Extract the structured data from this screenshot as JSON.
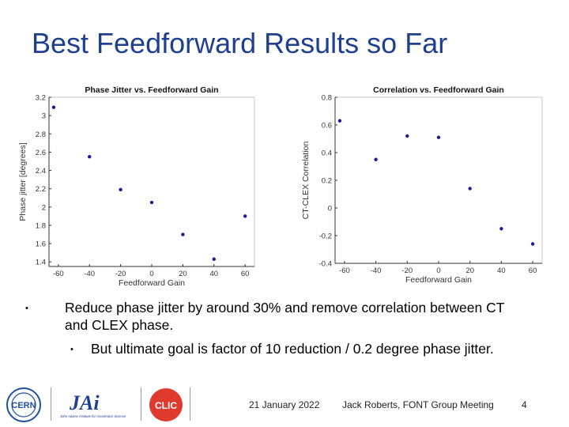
{
  "slide": {
    "title": "Best Feedforward Results so Far",
    "bullets": [
      {
        "text": "Reduce phase jitter by around 30% and remove correlation between CT and CLEX phase."
      },
      {
        "text": "But ultimate goal is factor of 10 reduction / 0.2 degree phase jitter."
      }
    ],
    "footer": {
      "date": "21 January 2022",
      "presenter": "Jack Roberts, FONT Group Meeting",
      "page": "4"
    },
    "logos": {
      "cern": "CERN",
      "jai_main": "JAi",
      "jai_sub": "John Adams Institute for Accelerator Science",
      "clic": "CLIC"
    }
  },
  "colors": {
    "title": "#1f3f8f",
    "points": "#1a1a9c",
    "axis": "#333333"
  },
  "chart_data": [
    {
      "type": "scatter",
      "title": "Phase Jitter vs. Feedforward Gain",
      "xlabel": "Feedforward Gain",
      "ylabel": "Phase jitter [degrees]",
      "xlim": [
        -66,
        66
      ],
      "ylim": [
        1.35,
        3.2
      ],
      "xticks": [
        -60,
        -40,
        -20,
        0,
        20,
        40,
        60
      ],
      "yticks": [
        1.4,
        1.6,
        1.8,
        2,
        2.2,
        2.4,
        2.6,
        2.8,
        3,
        3.2
      ],
      "grid": false,
      "x": [
        -63,
        -40,
        -20,
        0,
        20,
        40,
        60
      ],
      "y": [
        3.09,
        2.55,
        2.19,
        2.05,
        1.7,
        1.43,
        1.9
      ]
    },
    {
      "type": "scatter",
      "title": "Correlation vs. Feedforward Gain",
      "xlabel": "Feedforward Gain",
      "ylabel": "CT-CLEX Correlation",
      "xlim": [
        -66,
        66
      ],
      "ylim": [
        -0.4,
        0.8
      ],
      "xticks": [
        -60,
        -40,
        -20,
        0,
        20,
        40,
        60
      ],
      "yticks": [
        -0.4,
        -0.2,
        0,
        0.2,
        0.4,
        0.6,
        0.8
      ],
      "grid": false,
      "x": [
        -63,
        -40,
        -20,
        0,
        20,
        40,
        60
      ],
      "y": [
        0.63,
        0.35,
        0.52,
        0.51,
        0.14,
        -0.15,
        -0.26
      ]
    }
  ]
}
